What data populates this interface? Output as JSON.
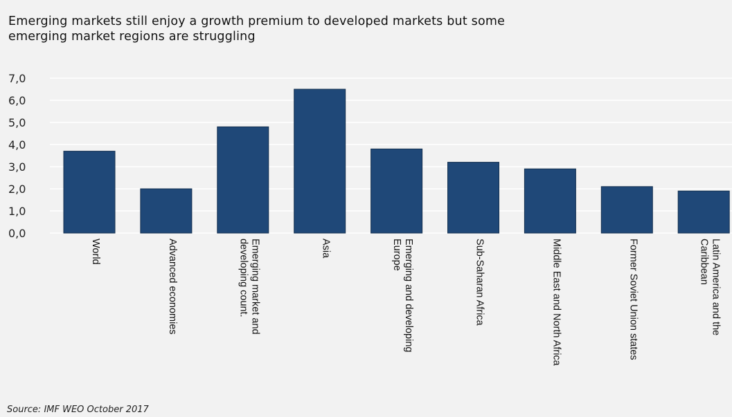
{
  "chart_data": {
    "type": "bar",
    "title": "Emerging markets still enjoy a growth premium to developed markets but some emerging market regions are struggling",
    "title_lines": [
      "Emerging markets still enjoy a growth premium to developed markets but some",
      "emerging market regions are struggling"
    ],
    "source": "Source: IMF WEO October 2017",
    "categories": [
      [
        "World"
      ],
      [
        "Advanced economies"
      ],
      [
        "Emerging market and",
        "developing count."
      ],
      [
        "Asia"
      ],
      [
        "Emerging and developing",
        "Europe"
      ],
      [
        "Sub-Saharan Africa"
      ],
      [
        "Middle East and North Africa"
      ],
      [
        "Former Soviet Union states"
      ],
      [
        "Latin America and the",
        "Caribbean"
      ]
    ],
    "values": [
      3.7,
      2.0,
      4.8,
      6.5,
      3.8,
      3.2,
      2.9,
      2.1,
      1.9
    ],
    "yticks": [
      "0,0",
      "1,0",
      "2,0",
      "3,0",
      "4,0",
      "5,0",
      "6,0",
      "7,0"
    ],
    "ylim": [
      0,
      7
    ],
    "xlabel": "",
    "ylabel": "",
    "grid": true,
    "bar_color": "#1f4878"
  }
}
